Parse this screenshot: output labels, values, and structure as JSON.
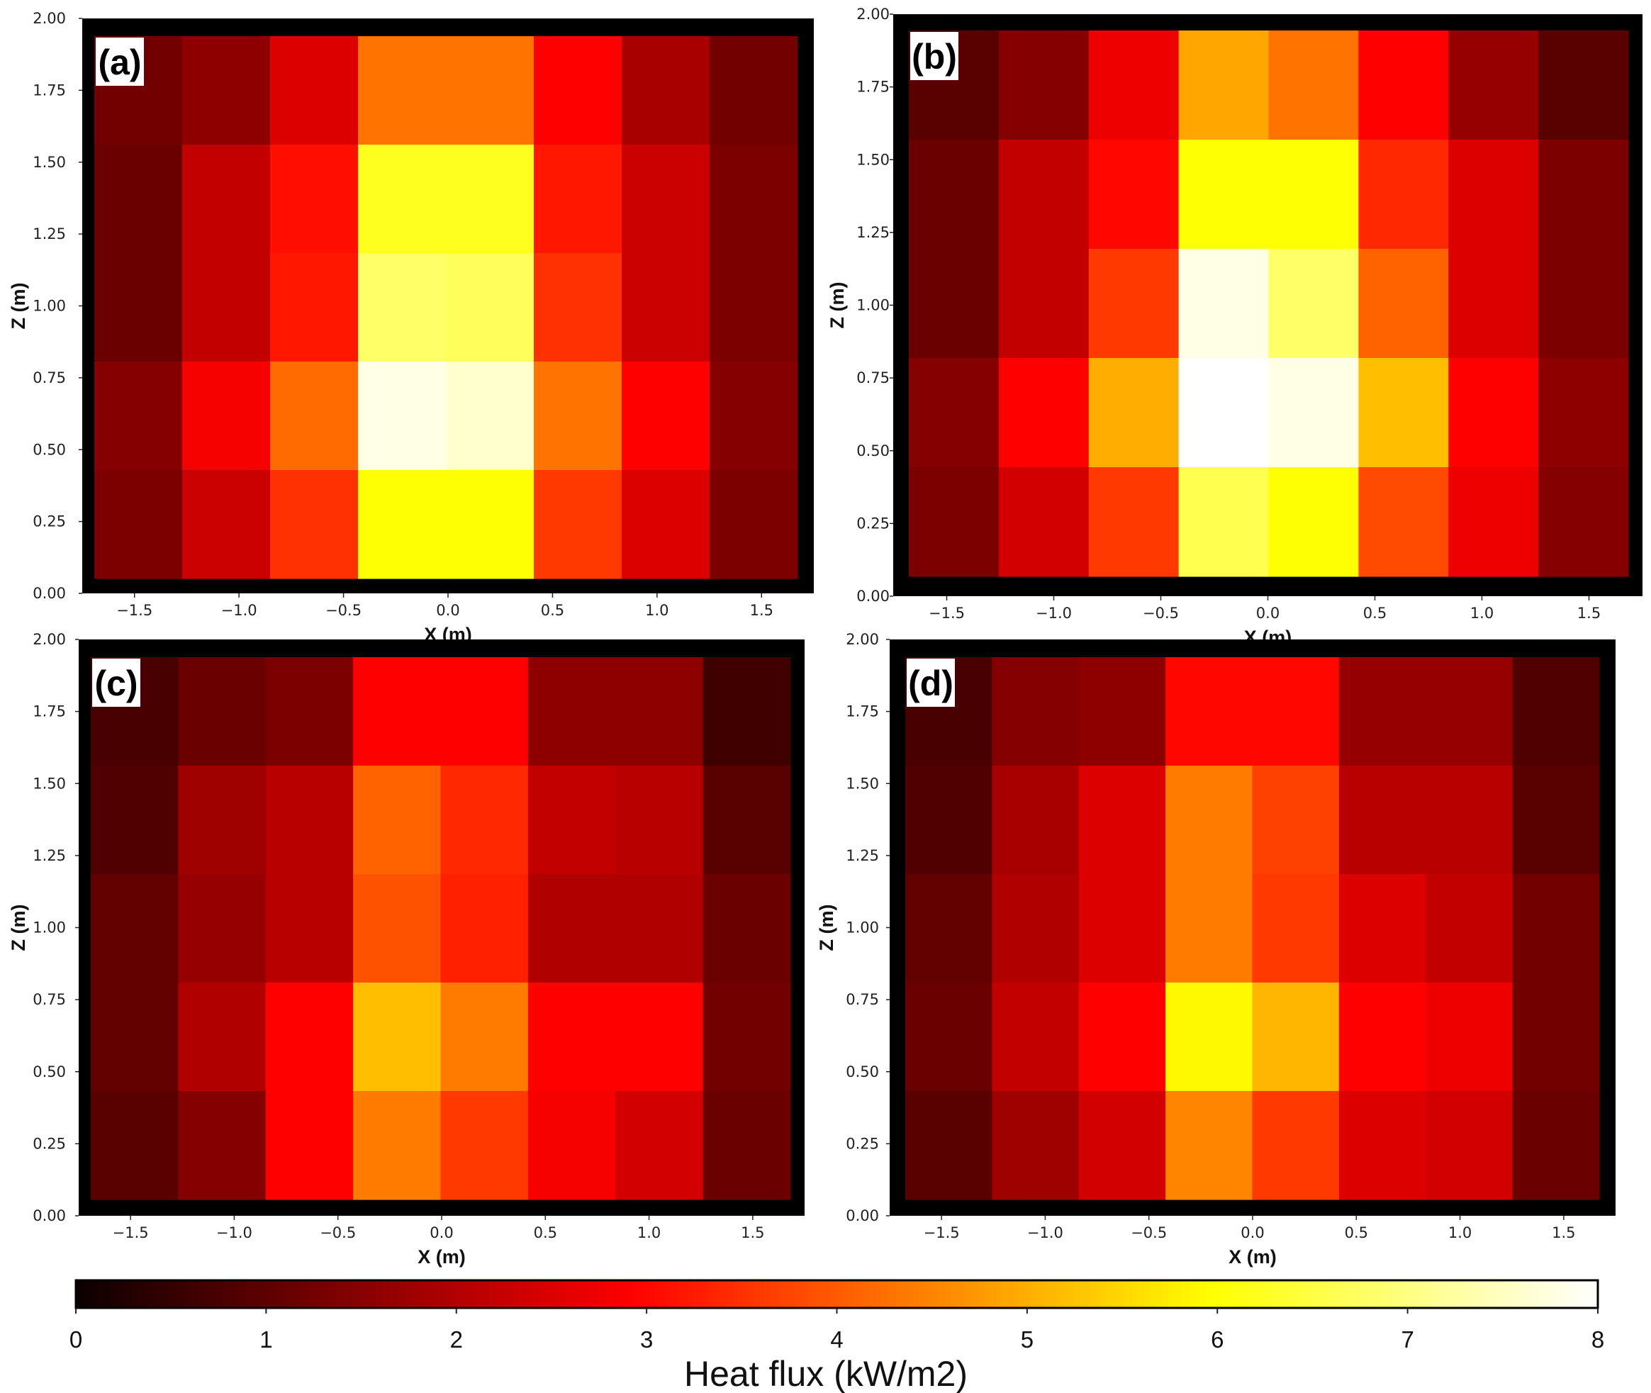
{
  "chart_data": {
    "type": "heatmap",
    "panels": [
      {
        "label": "(a)",
        "xlabel": "X (m)",
        "ylabel": "Z (m)",
        "xlim": [
          -1.75,
          1.75
        ],
        "ylim": [
          0.0,
          2.0
        ],
        "x_ticks": [
          "−1.5",
          "−1.0",
          "−0.5",
          "0.0",
          "0.5",
          "1.0",
          "1.5"
        ],
        "y_ticks": [
          "0.00",
          "0.25",
          "0.50",
          "0.75",
          "1.00",
          "1.25",
          "1.50",
          "1.75",
          "2.00"
        ],
        "rows_top_to_bottom": [
          [
            1.2,
            1.5,
            2.4,
            4.3,
            4.3,
            2.9,
            1.8,
            1.2
          ],
          [
            1.1,
            2.1,
            3.1,
            6.2,
            6.2,
            3.2,
            2.2,
            1.3
          ],
          [
            1.1,
            2.1,
            3.2,
            6.8,
            6.7,
            3.5,
            2.2,
            1.3
          ],
          [
            1.4,
            2.7,
            4.2,
            7.8,
            7.6,
            4.3,
            2.8,
            1.4
          ],
          [
            1.3,
            2.2,
            3.5,
            6.0,
            6.0,
            3.6,
            2.4,
            1.3
          ]
        ]
      },
      {
        "label": "(b)",
        "xlabel": "X (m)",
        "ylabel": "Z (m)",
        "xlim": [
          -1.75,
          1.75
        ],
        "ylim": [
          0.0,
          2.0
        ],
        "x_ticks": [
          "−1.5",
          "−1.0",
          "−0.5",
          "0.0",
          "0.5",
          "1.0",
          "1.5"
        ],
        "y_ticks": [
          "0.00",
          "0.25",
          "0.50",
          "0.75",
          "1.00",
          "1.25",
          "1.50",
          "1.75",
          "2.00"
        ],
        "rows_top_to_bottom": [
          [
            0.9,
            1.4,
            2.6,
            4.9,
            4.3,
            2.8,
            1.6,
            0.9
          ],
          [
            1.1,
            2.1,
            3.0,
            6.0,
            6.0,
            3.4,
            2.4,
            1.3
          ],
          [
            1.1,
            2.1,
            3.6,
            7.8,
            6.8,
            4.1,
            2.4,
            1.3
          ],
          [
            1.4,
            2.8,
            5.0,
            8.0,
            7.8,
            5.2,
            2.8,
            1.5
          ],
          [
            1.3,
            2.3,
            3.6,
            6.6,
            6.0,
            3.8,
            2.6,
            1.4
          ]
        ]
      },
      {
        "label": "(c)",
        "xlabel": "X (m)",
        "ylabel": "Z (m)",
        "xlim": [
          -1.75,
          1.75
        ],
        "ylim": [
          0.0,
          2.0
        ],
        "x_ticks": [
          "−1.5",
          "−1.0",
          "−0.5",
          "0.0",
          "0.5",
          "1.0",
          "1.5"
        ],
        "y_ticks": [
          "0.00",
          "0.25",
          "0.50",
          "0.75",
          "1.00",
          "1.25",
          "1.50",
          "1.75",
          "2.00"
        ],
        "rows_top_to_bottom": [
          [
            0.7,
            1.1,
            1.3,
            2.8,
            2.8,
            1.5,
            1.5,
            0.6
          ],
          [
            0.8,
            1.7,
            2.0,
            4.1,
            3.4,
            2.1,
            2.0,
            0.9
          ],
          [
            1.0,
            1.6,
            2.0,
            3.9,
            3.3,
            1.9,
            1.9,
            1.1
          ],
          [
            1.0,
            1.9,
            2.9,
            5.2,
            4.4,
            2.8,
            2.8,
            1.2
          ],
          [
            0.9,
            1.4,
            2.8,
            4.4,
            3.6,
            2.7,
            2.3,
            1.1
          ]
        ]
      },
      {
        "label": "(d)",
        "xlabel": "X (m)",
        "ylabel": "Z (m)",
        "xlim": [
          -1.75,
          1.75
        ],
        "ylim": [
          0.0,
          2.0
        ],
        "x_ticks": [
          "−1.5",
          "−1.0",
          "−0.5",
          "0.0",
          "0.5",
          "1.0",
          "1.5"
        ],
        "y_ticks": [
          "0.00",
          "0.25",
          "0.50",
          "0.75",
          "1.00",
          "1.25",
          "1.50",
          "1.75",
          "2.00"
        ],
        "rows_top_to_bottom": [
          [
            0.7,
            1.4,
            1.5,
            3.0,
            3.0,
            1.6,
            1.6,
            0.8
          ],
          [
            0.8,
            1.8,
            2.4,
            4.4,
            3.7,
            2.0,
            2.0,
            0.9
          ],
          [
            1.0,
            1.9,
            2.4,
            4.4,
            3.6,
            2.4,
            2.1,
            1.2
          ],
          [
            1.1,
            2.1,
            2.8,
            5.9,
            5.1,
            2.8,
            2.6,
            1.2
          ],
          [
            0.9,
            1.7,
            2.3,
            4.5,
            3.6,
            2.4,
            2.3,
            1.1
          ]
        ]
      }
    ],
    "colorbar": {
      "label": "Heat flux (kW/m2)",
      "min": 0,
      "max": 8,
      "ticks": [
        "0",
        "1",
        "2",
        "3",
        "4",
        "5",
        "6",
        "7",
        "8"
      ],
      "colormap": "hot"
    }
  }
}
